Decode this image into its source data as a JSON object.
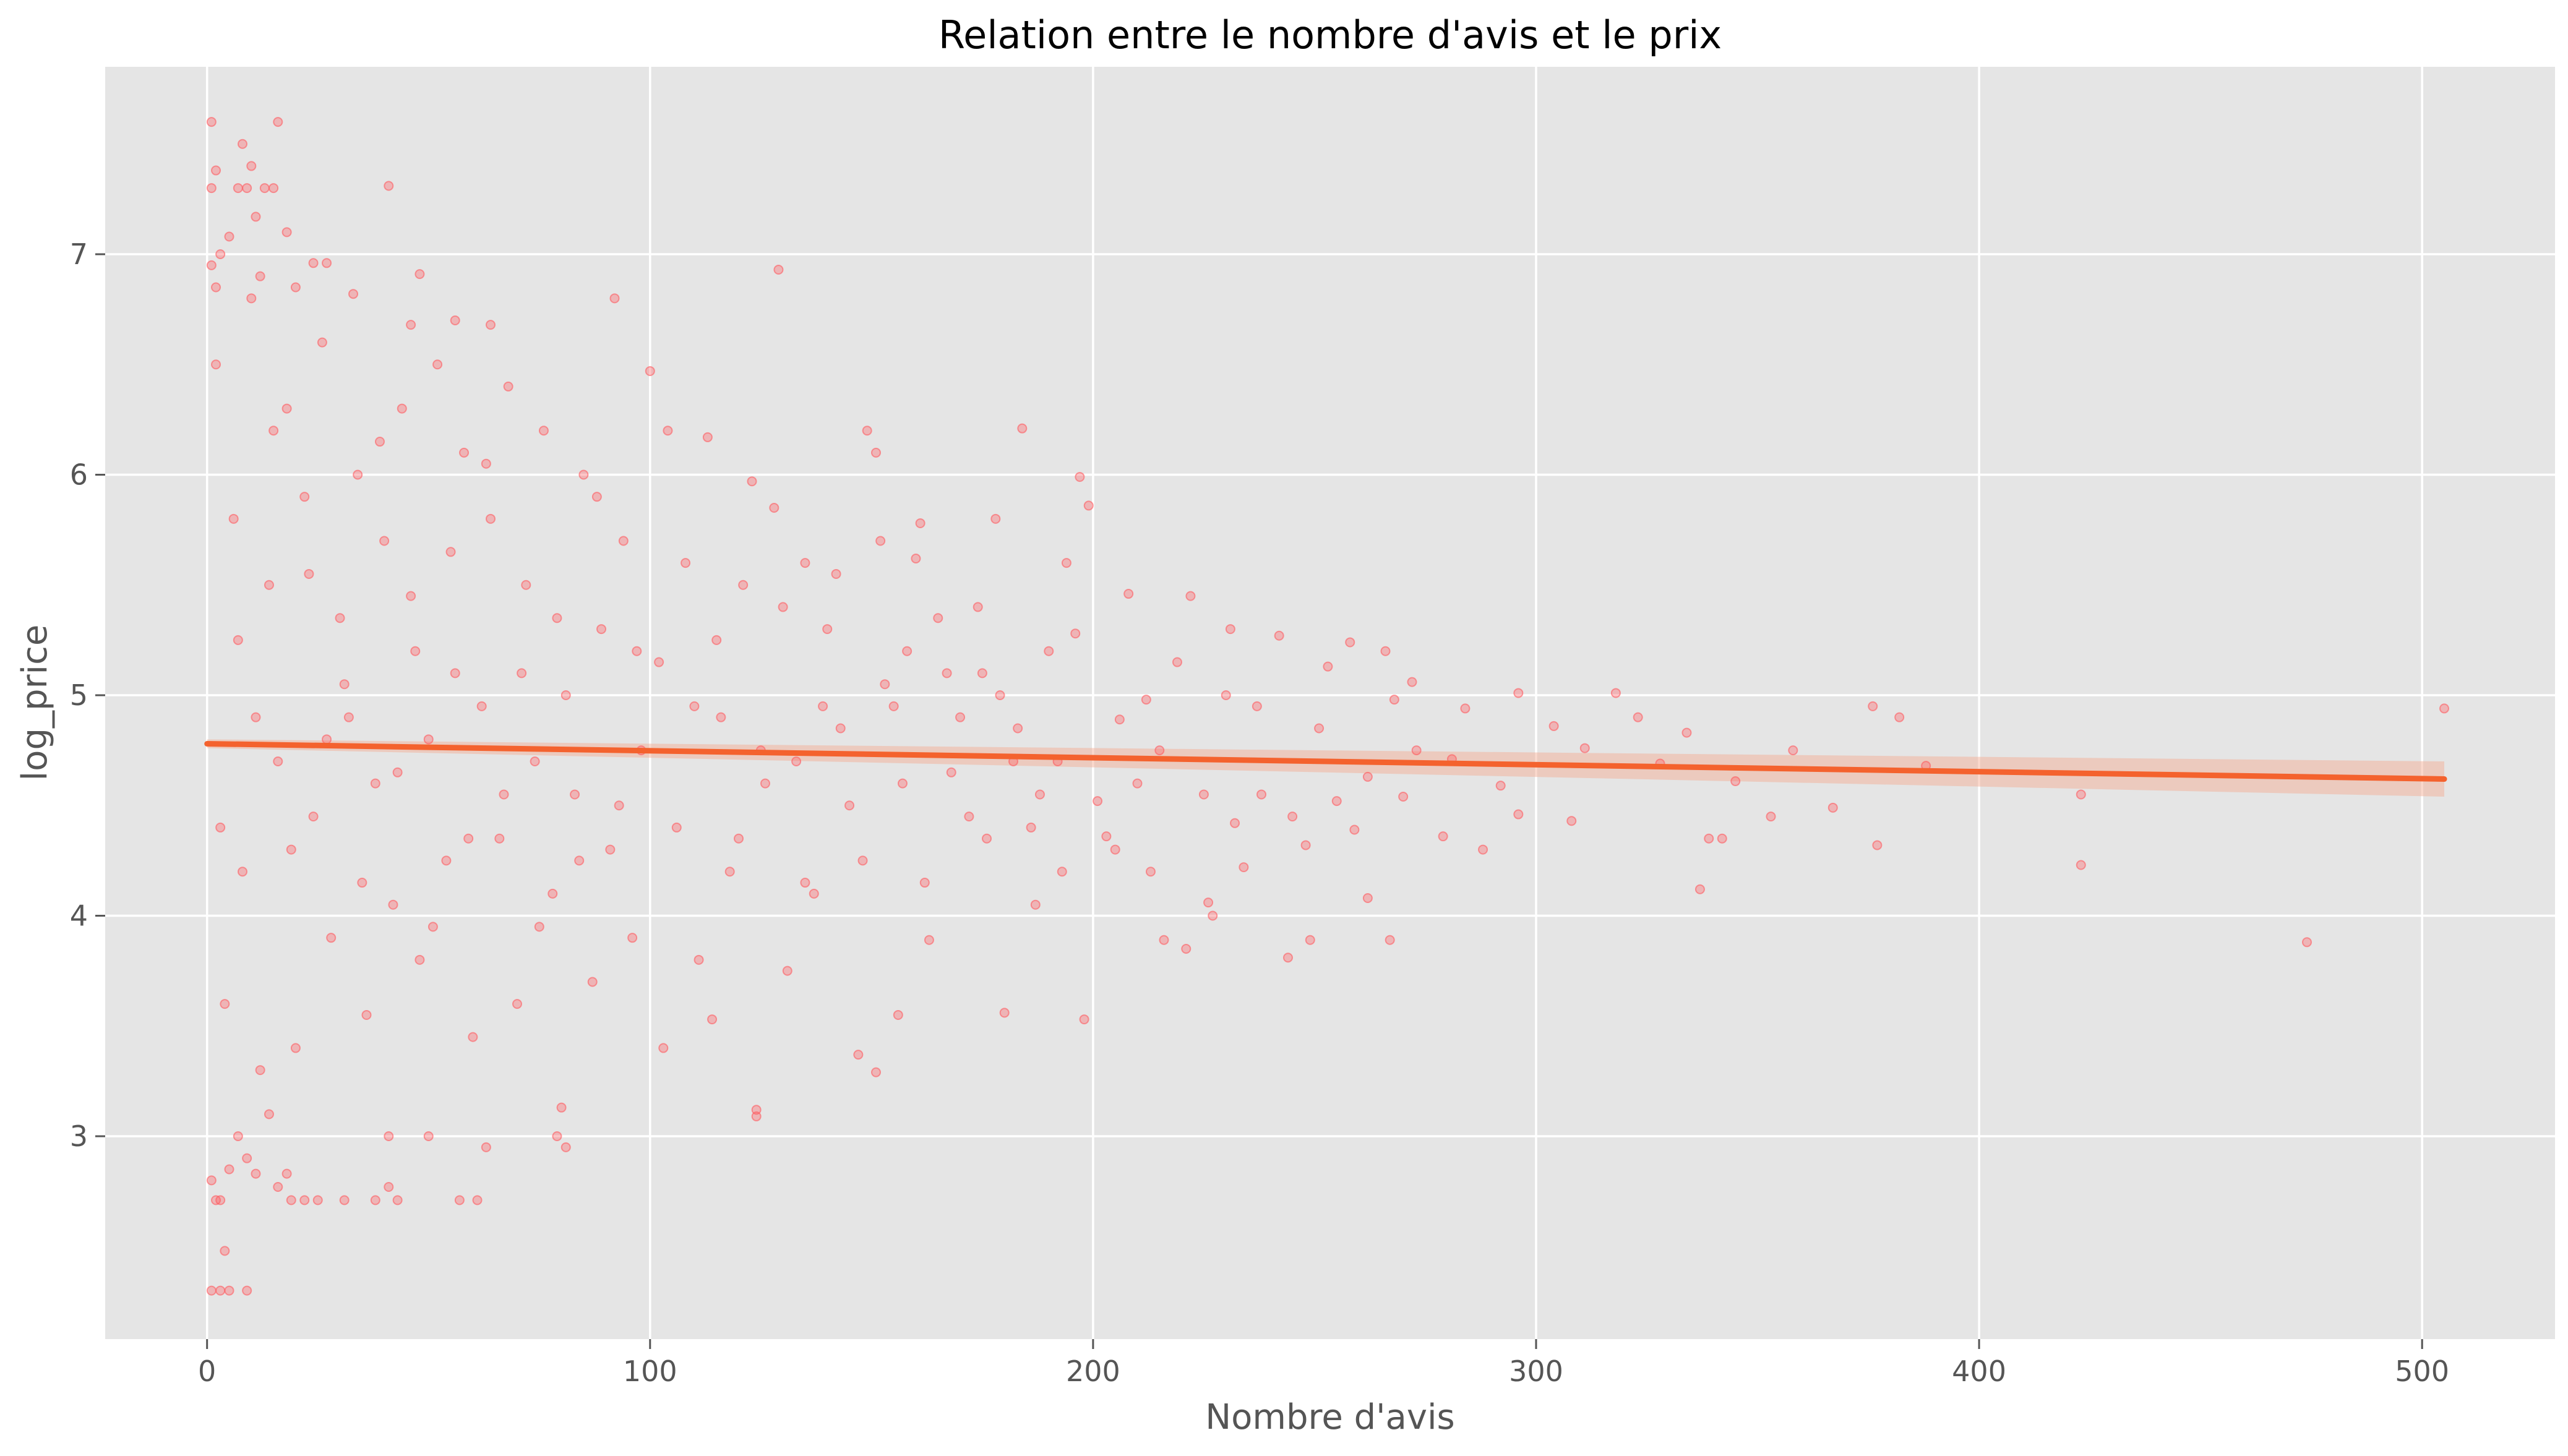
{
  "chart_data": {
    "type": "scatter",
    "title": "Relation entre le nombre d'avis et le prix",
    "xlabel": "Nombre d'avis",
    "ylabel": "log_price",
    "xlim": [
      -23,
      530
    ],
    "ylim": [
      2.08,
      7.85
    ],
    "xticks": [
      0,
      100,
      200,
      300,
      400,
      500
    ],
    "yticks": [
      3,
      4,
      5,
      6,
      7
    ],
    "grid": true,
    "colors": {
      "background": "#e5e5e5",
      "grid": "#ffffff",
      "points": "#ff5a5f",
      "regression_line": "#f4622e",
      "confidence_band": "#f4a98e"
    },
    "regression": {
      "x": [
        0,
        505
      ],
      "y": [
        4.78,
        4.62
      ],
      "ci_lower": [
        4.76,
        4.54
      ],
      "ci_upper": [
        4.8,
        4.7
      ]
    },
    "series": [
      {
        "points": [
          [
            1,
            7.6
          ],
          [
            2,
            7.38
          ],
          [
            1,
            7.3
          ],
          [
            7,
            7.3
          ],
          [
            9,
            7.3
          ],
          [
            13,
            7.3
          ],
          [
            15,
            7.3
          ],
          [
            16,
            7.6
          ],
          [
            8,
            7.5
          ],
          [
            10,
            7.4
          ],
          [
            11,
            7.17
          ],
          [
            5,
            7.08
          ],
          [
            3,
            7.0
          ],
          [
            1,
            6.95
          ],
          [
            18,
            7.1
          ],
          [
            41,
            7.31
          ],
          [
            129,
            6.93
          ],
          [
            92,
            6.8
          ],
          [
            48,
            6.91
          ],
          [
            27,
            6.96
          ],
          [
            24,
            6.96
          ],
          [
            33,
            6.82
          ],
          [
            56,
            6.7
          ],
          [
            64,
            6.68
          ],
          [
            46,
            6.68
          ],
          [
            2,
            6.85
          ],
          [
            12,
            6.9
          ],
          [
            20,
            6.85
          ],
          [
            100,
            6.47
          ],
          [
            104,
            6.2
          ],
          [
            113,
            6.17
          ],
          [
            123,
            5.97
          ],
          [
            149,
            6.2
          ],
          [
            151,
            6.1
          ],
          [
            184,
            6.21
          ],
          [
            197,
            5.99
          ],
          [
            199,
            5.86
          ],
          [
            161,
            5.78
          ],
          [
            178,
            5.8
          ],
          [
            152,
            5.7
          ],
          [
            128,
            5.85
          ],
          [
            135,
            5.6
          ],
          [
            160,
            5.62
          ],
          [
            174,
            5.4
          ],
          [
            194,
            5.6
          ],
          [
            208,
            5.46
          ],
          [
            222,
            5.45
          ],
          [
            231,
            5.3
          ],
          [
            242,
            5.27
          ],
          [
            258,
            5.24
          ],
          [
            266,
            5.2
          ],
          [
            272,
            5.06
          ],
          [
            296,
            5.01
          ],
          [
            304,
            4.86
          ],
          [
            318,
            5.01
          ],
          [
            323,
            4.9
          ],
          [
            334,
            4.83
          ],
          [
            358,
            4.75
          ],
          [
            376,
            4.95
          ],
          [
            382,
            4.9
          ],
          [
            388,
            4.68
          ],
          [
            505,
            4.94
          ],
          [
            423,
            4.55
          ],
          [
            423,
            4.23
          ],
          [
            474,
            3.88
          ],
          [
            339,
            4.35
          ],
          [
            342,
            4.35
          ],
          [
            353,
            4.45
          ],
          [
            367,
            4.49
          ],
          [
            377,
            4.32
          ],
          [
            337,
            4.12
          ],
          [
            308,
            4.43
          ],
          [
            296,
            4.46
          ],
          [
            288,
            4.3
          ],
          [
            279,
            4.36
          ],
          [
            267,
            3.89
          ],
          [
            262,
            4.08
          ],
          [
            249,
            3.89
          ],
          [
            244,
            3.81
          ],
          [
            221,
            3.85
          ],
          [
            216,
            3.89
          ],
          [
            198,
            3.53
          ],
          [
            180,
            3.56
          ],
          [
            163,
            3.89
          ],
          [
            156,
            3.55
          ],
          [
            151,
            3.29
          ],
          [
            147,
            3.37
          ],
          [
            124,
            3.12
          ],
          [
            124,
            3.09
          ],
          [
            114,
            3.53
          ],
          [
            103,
            3.4
          ],
          [
            80,
            3.13
          ],
          [
            79,
            3.0
          ],
          [
            81,
            2.95
          ],
          [
            63,
            2.95
          ],
          [
            50,
            3.0
          ],
          [
            41,
            3.0
          ],
          [
            41,
            2.77
          ],
          [
            22,
            2.71
          ],
          [
            25,
            2.71
          ],
          [
            31,
            2.71
          ],
          [
            38,
            2.71
          ],
          [
            43,
            2.71
          ],
          [
            57,
            2.71
          ],
          [
            61,
            2.71
          ],
          [
            1,
            2.3
          ],
          [
            3,
            2.3
          ],
          [
            5,
            2.3
          ],
          [
            9,
            2.3
          ],
          [
            4,
            2.48
          ],
          [
            2,
            2.71
          ],
          [
            3,
            2.71
          ],
          [
            5,
            2.85
          ],
          [
            9,
            2.9
          ],
          [
            1,
            2.8
          ],
          [
            7,
            3.0
          ],
          [
            14,
            3.1
          ],
          [
            11,
            2.83
          ],
          [
            18,
            2.83
          ],
          [
            16,
            2.77
          ],
          [
            19,
            2.71
          ],
          [
            210,
            4.6
          ],
          [
            215,
            4.75
          ],
          [
            225,
            4.55
          ],
          [
            232,
            4.42
          ],
          [
            238,
            4.55
          ],
          [
            245,
            4.45
          ],
          [
            255,
            4.52
          ],
          [
            262,
            4.63
          ],
          [
            270,
            4.54
          ],
          [
            281,
            4.71
          ],
          [
            292,
            4.59
          ],
          [
            311,
            4.76
          ],
          [
            328,
            4.69
          ],
          [
            345,
            4.61
          ],
          [
            230,
            5.0
          ],
          [
            237,
            4.95
          ],
          [
            212,
            4.98
          ],
          [
            206,
            4.89
          ],
          [
            219,
            5.15
          ],
          [
            253,
            5.13
          ],
          [
            268,
            4.98
          ],
          [
            273,
            4.75
          ],
          [
            284,
            4.94
          ],
          [
            251,
            4.85
          ],
          [
            203,
            4.36
          ],
          [
            205,
            4.3
          ],
          [
            226,
            4.06
          ],
          [
            227,
            4.0
          ],
          [
            234,
            4.22
          ],
          [
            248,
            4.32
          ],
          [
            259,
            4.39
          ],
          [
            213,
            4.2
          ],
          [
            170,
            4.9
          ],
          [
            175,
            5.1
          ],
          [
            182,
            4.7
          ],
          [
            186,
            4.4
          ],
          [
            190,
            5.2
          ],
          [
            193,
            4.2
          ],
          [
            188,
            4.55
          ],
          [
            176,
            4.35
          ],
          [
            168,
            4.65
          ],
          [
            165,
            5.35
          ],
          [
            158,
            5.2
          ],
          [
            155,
            4.95
          ],
          [
            145,
            4.5
          ],
          [
            140,
            5.3
          ],
          [
            137,
            4.1
          ],
          [
            133,
            4.7
          ],
          [
            131,
            3.75
          ],
          [
            126,
            4.6
          ],
          [
            121,
            5.5
          ],
          [
            118,
            4.2
          ],
          [
            116,
            4.9
          ],
          [
            111,
            3.8
          ],
          [
            108,
            5.6
          ],
          [
            106,
            4.4
          ],
          [
            102,
            5.15
          ],
          [
            98,
            4.75
          ],
          [
            96,
            3.9
          ],
          [
            94,
            5.7
          ],
          [
            91,
            4.3
          ],
          [
            89,
            5.3
          ],
          [
            87,
            3.7
          ],
          [
            85,
            6.0
          ],
          [
            83,
            4.55
          ],
          [
            81,
            5.0
          ],
          [
            78,
            4.1
          ],
          [
            76,
            6.2
          ],
          [
            74,
            4.7
          ],
          [
            72,
            5.5
          ],
          [
            70,
            3.6
          ],
          [
            68,
            6.4
          ],
          [
            66,
            4.35
          ],
          [
            64,
            5.8
          ],
          [
            62,
            4.95
          ],
          [
            60,
            3.45
          ],
          [
            58,
            6.1
          ],
          [
            56,
            5.1
          ],
          [
            54,
            4.25
          ],
          [
            52,
            6.5
          ],
          [
            50,
            4.8
          ],
          [
            48,
            3.8
          ],
          [
            46,
            5.45
          ],
          [
            44,
            6.3
          ],
          [
            42,
            4.05
          ],
          [
            40,
            5.7
          ],
          [
            38,
            4.6
          ],
          [
            36,
            3.55
          ],
          [
            34,
            6.0
          ],
          [
            32,
            4.9
          ],
          [
            30,
            5.35
          ],
          [
            28,
            3.9
          ],
          [
            26,
            6.6
          ],
          [
            24,
            4.45
          ],
          [
            22,
            5.9
          ],
          [
            20,
            3.4
          ],
          [
            18,
            6.3
          ],
          [
            16,
            4.7
          ],
          [
            14,
            5.5
          ],
          [
            12,
            3.3
          ],
          [
            10,
            6.8
          ],
          [
            8,
            4.2
          ],
          [
            6,
            5.8
          ],
          [
            4,
            3.6
          ],
          [
            2,
            6.5
          ],
          [
            143,
            4.85
          ],
          [
            148,
            4.25
          ],
          [
            153,
            5.05
          ],
          [
            157,
            4.6
          ],
          [
            162,
            4.15
          ],
          [
            167,
            5.1
          ],
          [
            172,
            4.45
          ],
          [
            179,
            5.0
          ],
          [
            183,
            4.85
          ],
          [
            187,
            4.05
          ],
          [
            192,
            4.7
          ],
          [
            196,
            5.28
          ],
          [
            201,
            4.52
          ],
          [
            110,
            4.95
          ],
          [
            115,
            5.25
          ],
          [
            120,
            4.35
          ],
          [
            125,
            4.75
          ],
          [
            130,
            5.4
          ],
          [
            135,
            4.15
          ],
          [
            139,
            4.95
          ],
          [
            142,
            5.55
          ],
          [
            97,
            5.2
          ],
          [
            93,
            4.5
          ],
          [
            88,
            5.9
          ],
          [
            84,
            4.25
          ],
          [
            79,
            5.35
          ],
          [
            75,
            3.95
          ],
          [
            71,
            5.1
          ],
          [
            67,
            4.55
          ],
          [
            63,
            6.05
          ],
          [
            59,
            4.35
          ],
          [
            55,
            5.65
          ],
          [
            51,
            3.95
          ],
          [
            47,
            5.2
          ],
          [
            43,
            4.65
          ],
          [
            39,
            6.15
          ],
          [
            35,
            4.15
          ],
          [
            31,
            5.05
          ],
          [
            27,
            4.8
          ],
          [
            23,
            5.55
          ],
          [
            19,
            4.3
          ],
          [
            15,
            6.2
          ],
          [
            11,
            4.9
          ],
          [
            7,
            5.25
          ],
          [
            3,
            4.4
          ]
        ]
      }
    ]
  }
}
